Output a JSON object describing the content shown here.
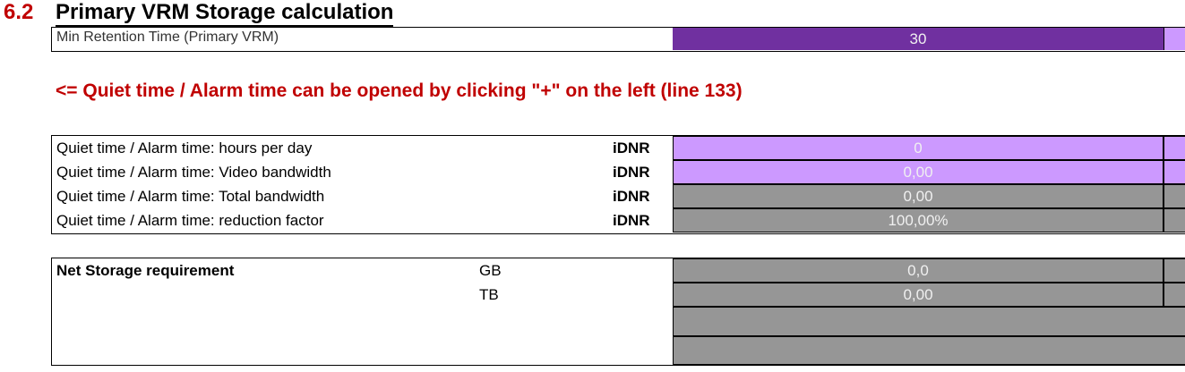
{
  "section": {
    "number": "6.2",
    "title": "Primary VRM Storage calculation"
  },
  "retention": {
    "label": "Min Retention Time (Primary VRM)",
    "value": "30"
  },
  "note": "<= Quiet time / Alarm time can be opened by clicking \"+\" on the left (line 133)",
  "quiet_rows": [
    {
      "label": "Quiet time / Alarm time: hours per day",
      "tag": "iDNR",
      "value": "0"
    },
    {
      "label": "Quiet time / Alarm time: Video bandwidth",
      "tag": "iDNR",
      "value": "0,00"
    },
    {
      "label": "Quiet time / Alarm time: Total bandwidth",
      "tag": "iDNR",
      "value": "0,00"
    },
    {
      "label": "Quiet time / Alarm time: reduction factor",
      "tag": "iDNR",
      "value": "100,00%"
    }
  ],
  "net_storage": {
    "label": "Net Storage requirement",
    "rows": [
      {
        "unit": "GB",
        "value": "0,0"
      },
      {
        "unit": "TB",
        "value": "0,00"
      }
    ]
  },
  "colors": {
    "input_dark": "#7030a0",
    "input_light": "#cc99ff",
    "calc": "#969696",
    "heading_red": "#c00000"
  }
}
